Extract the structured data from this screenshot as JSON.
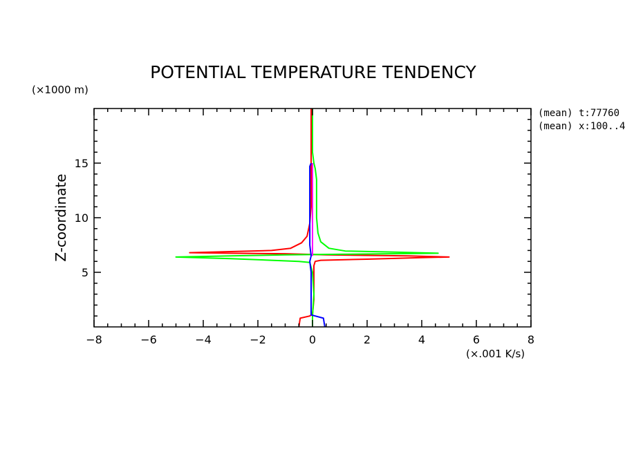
{
  "chart_data": {
    "type": "line",
    "title": "POTENTIAL TEMPERATURE TENDENCY",
    "ylabel": "Z-coordinate",
    "yunit": "(×1000 m)",
    "xunit": "(×.001 K/s)",
    "xlim": [
      -8,
      8
    ],
    "ylim": [
      0,
      20
    ],
    "xticks": [
      -8,
      -6,
      -4,
      -2,
      0,
      2,
      4,
      6,
      8
    ],
    "yticks": [
      5,
      10,
      15
    ],
    "grid": false,
    "annotations": [
      "(mean) t:77760",
      "(mean) x:100..4"
    ],
    "series": [
      {
        "color": "#ff0000",
        "points": [
          [
            -0.5,
            0.0
          ],
          [
            -0.45,
            0.8
          ],
          [
            -0.1,
            1.0
          ],
          [
            0.0,
            1.2
          ],
          [
            0.05,
            2.5
          ],
          [
            0.05,
            4.5
          ],
          [
            0.05,
            5.6
          ],
          [
            0.1,
            6.0
          ],
          [
            0.3,
            6.1
          ],
          [
            2.0,
            6.2
          ],
          [
            4.0,
            6.35
          ],
          [
            5.0,
            6.4
          ],
          [
            3.5,
            6.5
          ],
          [
            0.5,
            6.6
          ],
          [
            -1.0,
            6.7
          ],
          [
            -3.0,
            6.75
          ],
          [
            -4.5,
            6.8
          ],
          [
            -3.0,
            6.9
          ],
          [
            -1.5,
            7.0
          ],
          [
            -0.8,
            7.2
          ],
          [
            -0.4,
            7.7
          ],
          [
            -0.2,
            8.3
          ],
          [
            -0.1,
            9.5
          ],
          [
            -0.05,
            11.0
          ],
          [
            -0.05,
            13.0
          ],
          [
            -0.05,
            15.0
          ],
          [
            -0.05,
            17.0
          ],
          [
            -0.05,
            19.0
          ],
          [
            -0.05,
            20.0
          ]
        ]
      },
      {
        "color": "#00ff00",
        "points": [
          [
            0.0,
            0.0
          ],
          [
            0.0,
            1.0
          ],
          [
            0.05,
            3.0
          ],
          [
            0.0,
            5.0
          ],
          [
            -0.1,
            5.9
          ],
          [
            -0.5,
            6.0
          ],
          [
            -1.5,
            6.1
          ],
          [
            -3.0,
            6.25
          ],
          [
            -5.0,
            6.4
          ],
          [
            -3.0,
            6.5
          ],
          [
            -1.0,
            6.6
          ],
          [
            1.0,
            6.65
          ],
          [
            3.0,
            6.7
          ],
          [
            4.6,
            6.75
          ],
          [
            3.0,
            6.85
          ],
          [
            1.2,
            6.95
          ],
          [
            0.6,
            7.2
          ],
          [
            0.3,
            7.8
          ],
          [
            0.2,
            8.6
          ],
          [
            0.15,
            10.0
          ],
          [
            0.15,
            12.0
          ],
          [
            0.15,
            13.5
          ],
          [
            0.1,
            14.5
          ],
          [
            0.05,
            15.0
          ],
          [
            0.0,
            16.0
          ],
          [
            0.0,
            18.0
          ],
          [
            0.0,
            20.0
          ]
        ]
      },
      {
        "color": "#0000ff",
        "points": [
          [
            0.45,
            0.0
          ],
          [
            0.4,
            0.8
          ],
          [
            0.1,
            1.0
          ],
          [
            -0.05,
            1.1
          ],
          [
            -0.05,
            3.0
          ],
          [
            -0.05,
            5.0
          ],
          [
            -0.1,
            6.0
          ],
          [
            -0.05,
            6.5
          ],
          [
            -0.1,
            7.5
          ],
          [
            -0.1,
            9.0
          ],
          [
            -0.1,
            11.0
          ],
          [
            -0.1,
            13.0
          ],
          [
            -0.1,
            14.7
          ],
          [
            -0.05,
            15.0
          ]
        ]
      },
      {
        "color": "#ff00ff",
        "points": [
          [
            0.0,
            6.5
          ],
          [
            0.0,
            7.5
          ],
          [
            0.0,
            9.0
          ],
          [
            0.0,
            11.0
          ],
          [
            0.0,
            13.0
          ],
          [
            0.0,
            14.5
          ],
          [
            0.0,
            15.0
          ]
        ]
      }
    ]
  }
}
